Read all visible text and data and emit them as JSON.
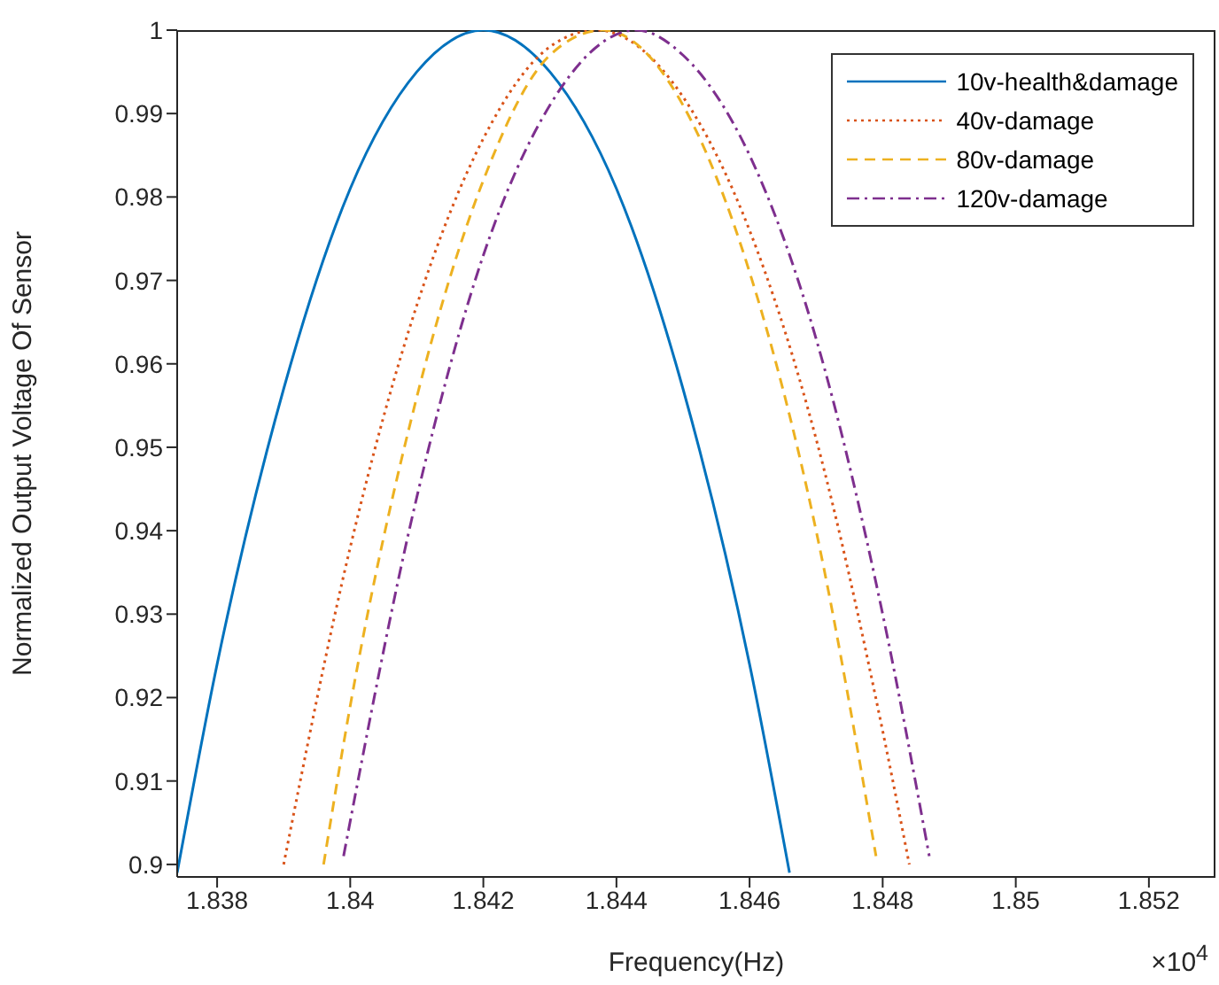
{
  "chart_data": {
    "type": "line",
    "xlabel": "Frequency(Hz)",
    "ylabel": "Normalized Output Voltage Of Sensor",
    "annotations": [
      "×10$^{4}$"
    ],
    "xlim": [
      1.8374,
      1.853
    ],
    "ylim": [
      0.8985,
      1
    ],
    "xticks": [
      1.838,
      1.84,
      1.842,
      1.844,
      1.846,
      1.848,
      1.85,
      1.852
    ],
    "yticks": [
      0.9,
      0.91,
      0.92,
      0.93,
      0.94,
      0.95,
      0.96,
      0.97,
      0.98,
      0.99,
      1
    ],
    "grid": false,
    "legend": "top right",
    "marker": "none",
    "series": [
      {
        "name": "10v-health&damage",
        "color": "#0072bd",
        "line_style": "solid",
        "x": [
          1.8374,
          1.838,
          1.839,
          1.84,
          1.841,
          1.842,
          1.843,
          1.844,
          1.845,
          1.846,
          1.8466
        ],
        "values": [
          0.899,
          0.924,
          0.957,
          0.981,
          0.995,
          1,
          0.995,
          0.981,
          0.957,
          0.924,
          0.899
        ]
      },
      {
        "name": "40v-damage",
        "color": "#d95319",
        "line_style": "dotted",
        "x": [
          1.839,
          1.84,
          1.841,
          1.842,
          1.843,
          1.8437,
          1.845,
          1.846,
          1.847,
          1.848,
          1.8484
        ],
        "values": [
          0.9,
          0.938,
          0.967,
          0.987,
          0.998,
          1,
          0.992,
          0.976,
          0.951,
          0.916,
          0.9
        ]
      },
      {
        "name": "80v-damage",
        "color": "#edb120",
        "line_style": "dashed",
        "x": [
          1.8396,
          1.84,
          1.841,
          1.842,
          1.843,
          1.8438,
          1.845,
          1.846,
          1.847,
          1.8479
        ],
        "values": [
          0.9,
          0.919,
          0.956,
          0.982,
          0.997,
          1,
          0.991,
          0.971,
          0.94,
          0.901
        ]
      },
      {
        "name": "120v-damage",
        "color": "#7e2f8e",
        "line_style": "dashdot",
        "x": [
          1.8399,
          1.841,
          1.842,
          1.843,
          1.8443,
          1.845,
          1.846,
          1.847,
          1.848,
          1.8487
        ],
        "values": [
          0.901,
          0.944,
          0.973,
          0.991,
          1,
          0.997,
          0.985,
          0.963,
          0.93,
          0.901
        ]
      }
    ]
  }
}
